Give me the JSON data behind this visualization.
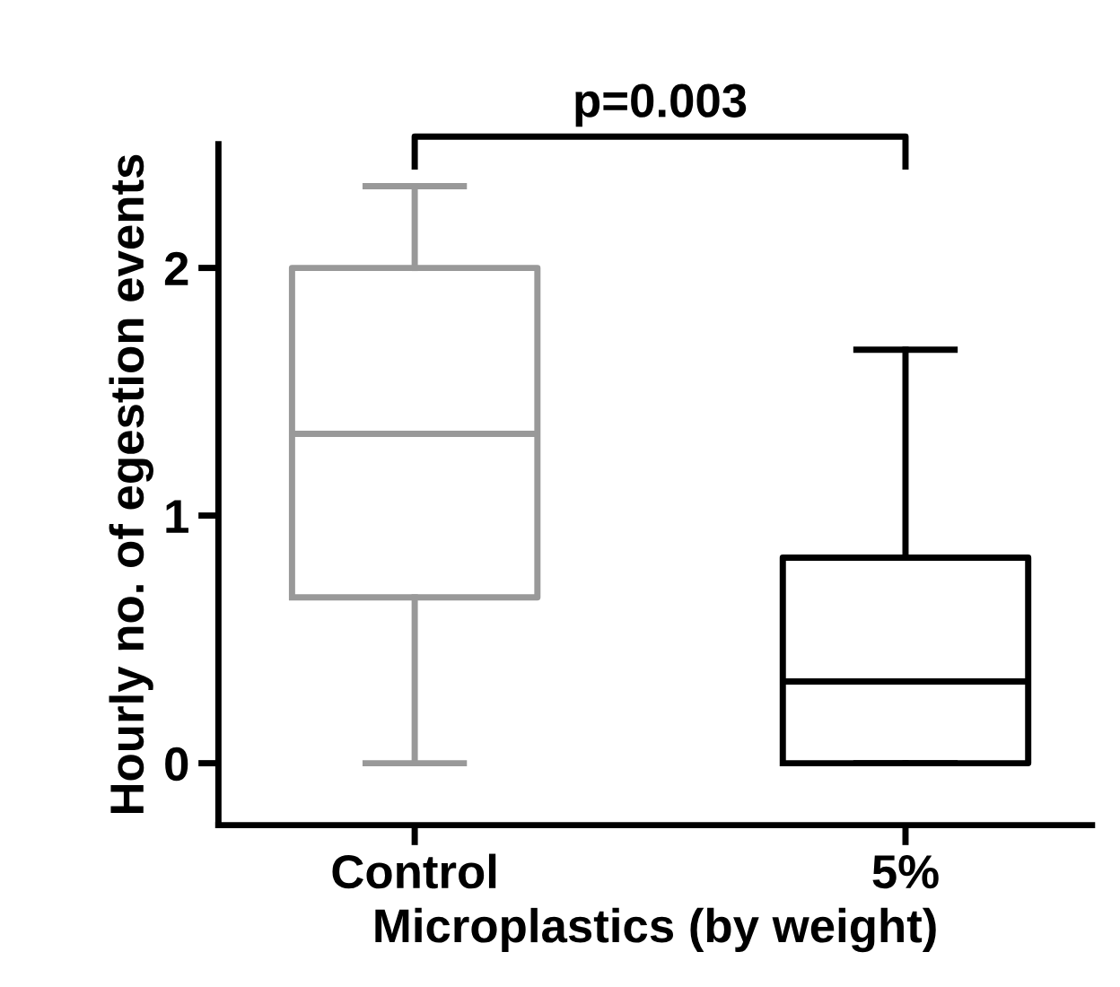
{
  "chart_data": {
    "type": "box",
    "xlabel": "Microplastics (by weight)",
    "ylabel": "Hourly no. of egestion events",
    "categories": [
      "Control",
      "5%"
    ],
    "boxes": [
      {
        "low": 0,
        "q1": 0.67,
        "median": 1.33,
        "q3": 2.0,
        "high": 2.33
      },
      {
        "low": 0,
        "q1": 0,
        "median": 0.33,
        "q3": 0.83,
        "high": 1.67
      }
    ],
    "colors": [
      "#999999",
      "#000000"
    ],
    "ylim": [
      -0.25,
      2.5
    ],
    "yticks": [
      0,
      1,
      2
    ],
    "grid": false,
    "annotations": [
      "p=0.003"
    ]
  }
}
